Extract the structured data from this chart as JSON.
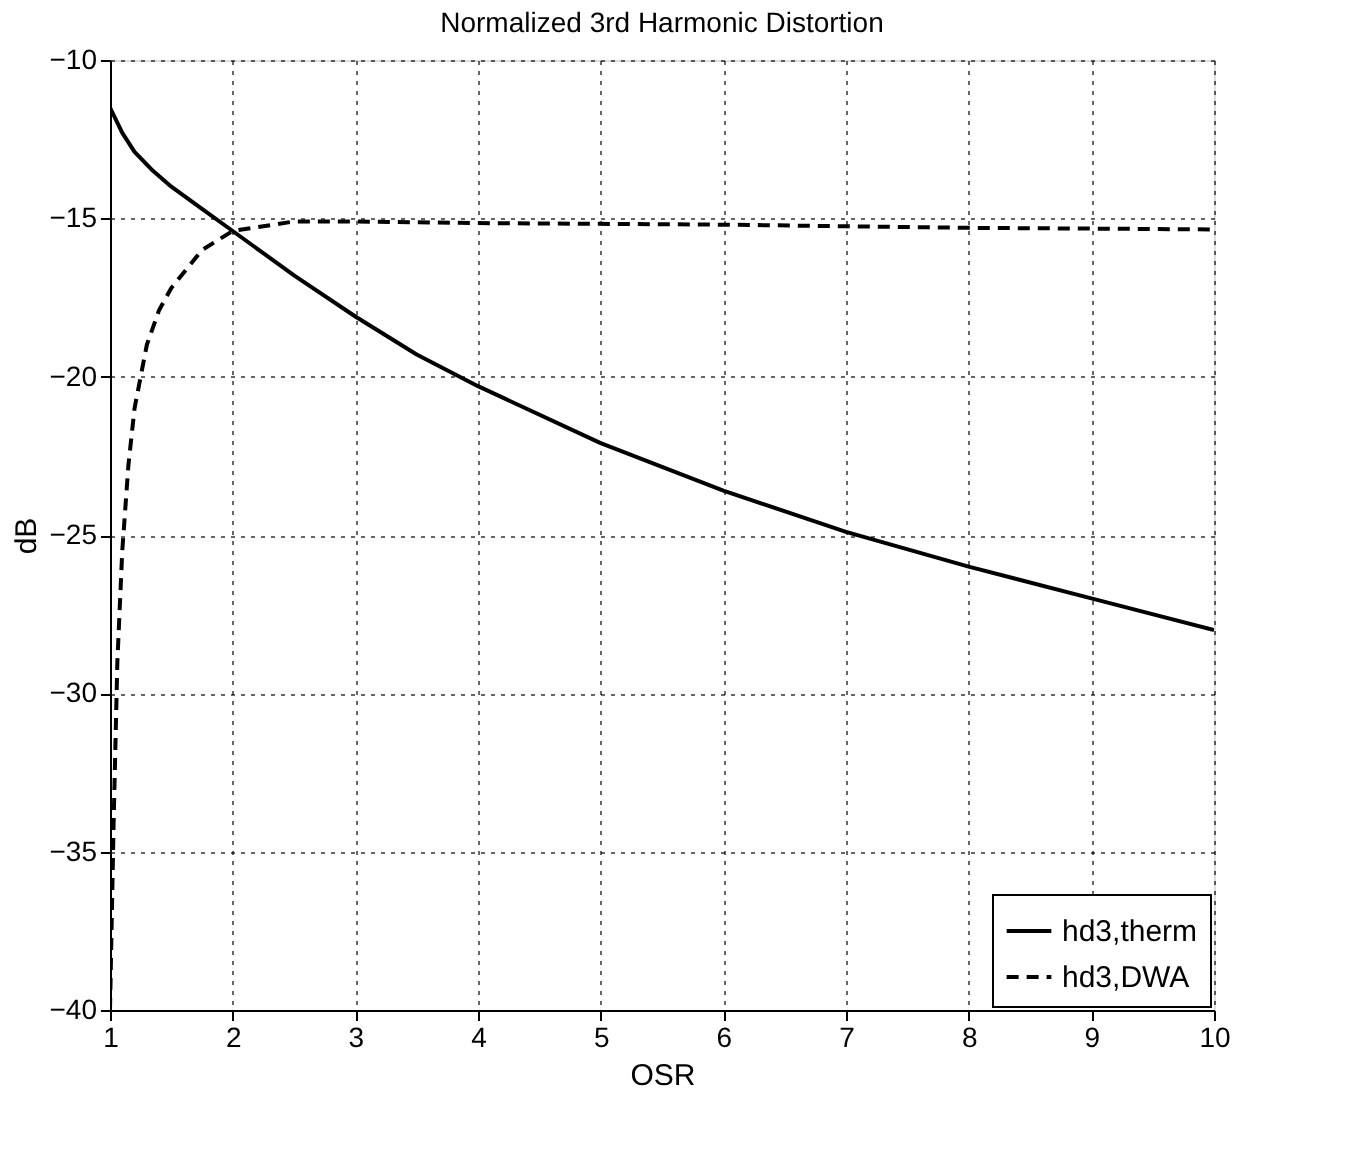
{
  "chart_data": {
    "type": "line",
    "title": "Normalized 3rd Harmonic Distortion",
    "xlabel": "OSR",
    "ylabel": "dB",
    "xlim": [
      1,
      10
    ],
    "ylim": [
      -40,
      -10
    ],
    "xticks": [
      1,
      2,
      3,
      4,
      5,
      6,
      7,
      8,
      9,
      10
    ],
    "yticks": [
      -40,
      -35,
      -30,
      -25,
      -20,
      -15,
      -10
    ],
    "grid": true,
    "legend": "bottom right",
    "series": [
      {
        "name": "hd3,therm",
        "color": "#000000",
        "line_style": "solid",
        "x": [
          1,
          1.1,
          1.2,
          1.35,
          1.5,
          1.75,
          2,
          2.5,
          3,
          3.5,
          4,
          5,
          6,
          7,
          8,
          9,
          10
        ],
        "values": [
          -11.5,
          -12.3,
          -12.9,
          -13.5,
          -14.0,
          -14.7,
          -15.4,
          -16.8,
          -18.1,
          -19.3,
          -20.3,
          -22.1,
          -23.6,
          -24.9,
          -26.0,
          -27.0,
          -28.0
        ]
      },
      {
        "name": "hd3,DWA",
        "color": "#000000",
        "line_style": "dashed",
        "x": [
          1,
          1.03,
          1.06,
          1.1,
          1.15,
          1.2,
          1.3,
          1.4,
          1.5,
          1.75,
          2,
          2.5,
          3,
          4,
          6,
          8,
          10
        ],
        "values": [
          -40,
          -34,
          -29,
          -25.5,
          -22.8,
          -21,
          -19,
          -17.9,
          -17.2,
          -16,
          -15.4,
          -15.1,
          -15.1,
          -15.15,
          -15.2,
          -15.3,
          -15.35
        ]
      }
    ]
  }
}
